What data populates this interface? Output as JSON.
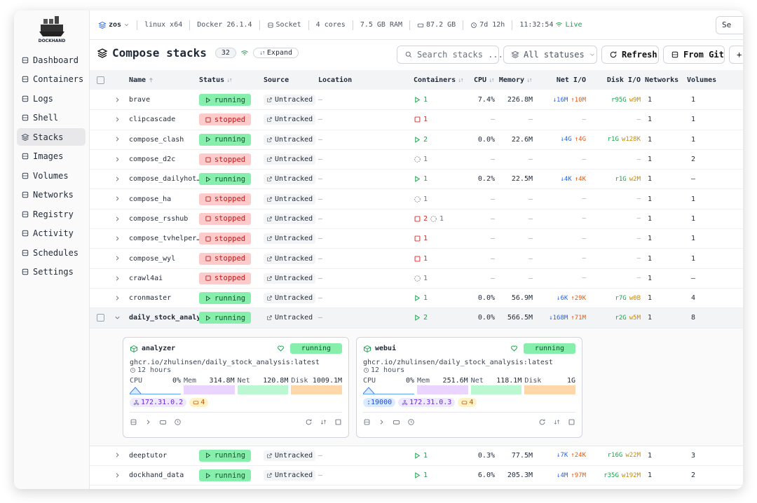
{
  "sidebar": {
    "logo": "DOCKHAND",
    "nav": [
      {
        "label": "Dashboard",
        "active": false
      },
      {
        "label": "Containers",
        "active": false
      },
      {
        "label": "Logs",
        "active": false
      },
      {
        "label": "Shell",
        "active": false
      },
      {
        "label": "Stacks",
        "active": true
      },
      {
        "label": "Images",
        "active": false
      },
      {
        "label": "Volumes",
        "active": false
      },
      {
        "label": "Networks",
        "active": false
      },
      {
        "label": "Registry",
        "active": false
      },
      {
        "label": "Activity",
        "active": false
      },
      {
        "label": "Schedules",
        "active": false
      },
      {
        "label": "Settings",
        "active": false
      }
    ]
  },
  "topbar": {
    "host": "zos",
    "platform": "linux x64",
    "docker": "Docker 26.1.4",
    "connection": "Socket",
    "cpu": "4 cores",
    "ram": "7.5 GB RAM",
    "disk": "87.2 GB",
    "uptime": "7d 12h",
    "time": "11:32:54",
    "status": "Live",
    "search": "Se"
  },
  "header": {
    "title": "Compose stacks",
    "count": "32",
    "expand": "Expand",
    "search_placeholder": "Search stacks ...",
    "filter": "All statuses",
    "refresh": "Refresh",
    "from_git": "From Git",
    "add": "+"
  },
  "table": {
    "columns": [
      "Name",
      "Status",
      "Source",
      "Location",
      "Containers",
      "CPU",
      "Memory",
      "Net I/O",
      "Disk I/O",
      "Networks",
      "Volumes"
    ],
    "rows": [
      {
        "name": "brave",
        "status": "running",
        "source": "Untracked",
        "location": "–",
        "containers": [
          {
            "state": "running",
            "count": "1"
          }
        ],
        "cpu": "7.4%",
        "memory": "226.8M",
        "net": [
          "↓16M",
          "↑10M"
        ],
        "disk": [
          "r95G",
          "w9M"
        ],
        "networks": "1",
        "volumes": "1"
      },
      {
        "name": "clipcascade",
        "status": "stopped",
        "source": "Untracked",
        "location": "–",
        "containers": [
          {
            "state": "stopped",
            "count": "1"
          }
        ],
        "cpu": "–",
        "memory": "–",
        "net": [
          "–"
        ],
        "disk": [
          "–"
        ],
        "networks": "1",
        "volumes": "1"
      },
      {
        "name": "compose_clash",
        "status": "running",
        "source": "Untracked",
        "location": "–",
        "containers": [
          {
            "state": "running",
            "count": "2"
          }
        ],
        "cpu": "0.0%",
        "memory": "22.6M",
        "net": [
          "↓4G",
          "↑4G"
        ],
        "disk": [
          "r1G",
          "w128K"
        ],
        "networks": "1",
        "volumes": "1"
      },
      {
        "name": "compose_d2c",
        "status": "stopped",
        "source": "Untracked",
        "location": "–",
        "containers": [
          {
            "state": "created",
            "count": "1"
          }
        ],
        "cpu": "–",
        "memory": "–",
        "net": [
          "–"
        ],
        "disk": [
          "–"
        ],
        "networks": "1",
        "volumes": "2"
      },
      {
        "name": "compose_dailyhot…",
        "status": "running",
        "source": "Untracked",
        "location": "–",
        "containers": [
          {
            "state": "running",
            "count": "1"
          }
        ],
        "cpu": "0.2%",
        "memory": "22.5M",
        "net": [
          "↓4K",
          "↑4K"
        ],
        "disk": [
          "r1G",
          "w2M"
        ],
        "networks": "1",
        "volumes": "–"
      },
      {
        "name": "compose_ha",
        "status": "stopped",
        "source": "Untracked",
        "location": "–",
        "containers": [
          {
            "state": "created",
            "count": "1"
          }
        ],
        "cpu": "–",
        "memory": "–",
        "net": [
          "–"
        ],
        "disk": [
          "–"
        ],
        "networks": "1",
        "volumes": "1"
      },
      {
        "name": "compose_rsshub",
        "status": "stopped",
        "source": "Untracked",
        "location": "–",
        "containers": [
          {
            "state": "stopped",
            "count": "2"
          },
          {
            "state": "created",
            "count": "1"
          }
        ],
        "cpu": "–",
        "memory": "–",
        "net": [
          "–"
        ],
        "disk": [
          "–"
        ],
        "networks": "1",
        "volumes": "1"
      },
      {
        "name": "compose_tvhelper…",
        "status": "stopped",
        "source": "Untracked",
        "location": "–",
        "containers": [
          {
            "state": "stopped",
            "count": "1"
          }
        ],
        "cpu": "–",
        "memory": "–",
        "net": [
          "–"
        ],
        "disk": [
          "–"
        ],
        "networks": "1",
        "volumes": "1"
      },
      {
        "name": "compose_wyl",
        "status": "stopped",
        "source": "Untracked",
        "location": "–",
        "containers": [
          {
            "state": "stopped",
            "count": "1"
          }
        ],
        "cpu": "–",
        "memory": "–",
        "net": [
          "–"
        ],
        "disk": [
          "–"
        ],
        "networks": "1",
        "volumes": "1"
      },
      {
        "name": "crawl4ai",
        "status": "stopped",
        "source": "Untracked",
        "location": "–",
        "containers": [
          {
            "state": "created",
            "count": "1"
          }
        ],
        "cpu": "–",
        "memory": "–",
        "net": [
          "–"
        ],
        "disk": [
          "–"
        ],
        "networks": "1",
        "volumes": "–"
      },
      {
        "name": "cronmaster",
        "status": "running",
        "source": "Untracked",
        "location": "–",
        "containers": [
          {
            "state": "running",
            "count": "1"
          }
        ],
        "cpu": "0.0%",
        "memory": "56.9M",
        "net": [
          "↓6K",
          "↑29K"
        ],
        "disk": [
          "r7G",
          "w0B"
        ],
        "networks": "1",
        "volumes": "4"
      },
      {
        "name": "daily_stock_analy",
        "status": "running",
        "source": "Untracked",
        "location": "–",
        "containers": [
          {
            "state": "running",
            "count": "2"
          }
        ],
        "cpu": "0.0%",
        "memory": "566.5M",
        "net": [
          "↓168M",
          "↑71M"
        ],
        "disk": [
          "r2G",
          "w5M"
        ],
        "networks": "1",
        "volumes": "8",
        "expanded": true
      },
      {
        "name": "deeptutor",
        "status": "running",
        "source": "Untracked",
        "location": "–",
        "containers": [
          {
            "state": "running",
            "count": "1"
          }
        ],
        "cpu": "0.3%",
        "memory": "77.5M",
        "net": [
          "↓7K",
          "↑24K"
        ],
        "disk": [
          "r16G",
          "w22M"
        ],
        "networks": "1",
        "volumes": "3"
      },
      {
        "name": "dockhand_data",
        "status": "running",
        "source": "Untracked",
        "location": "–",
        "containers": [
          {
            "state": "running",
            "count": "1"
          }
        ],
        "cpu": "6.0%",
        "memory": "205.3M",
        "net": [
          "↓4M",
          "↑97M"
        ],
        "disk": [
          "r35G",
          "w192M"
        ],
        "networks": "1",
        "volumes": "2"
      }
    ]
  },
  "cards": {
    "labels": {
      "cpu": "CPU",
      "mem": "Mem",
      "net": "Net",
      "disk": "Disk"
    },
    "items": [
      {
        "name": "analyzer",
        "status": "running",
        "image": "ghcr.io/zhulinsen/daily_stock_analysis:latest",
        "age": "12 hours",
        "cpu": "0%",
        "mem": "314.8M",
        "net": "120.8M",
        "disk": "1009.1M",
        "ip": "172.31.0.2",
        "badge": "4"
      },
      {
        "name": "webui",
        "status": "running",
        "image": "ghcr.io/zhulinsen/daily_stock_analysis:latest",
        "age": "12 hours",
        "cpu": "0%",
        "mem": "251.6M",
        "net": "118.1M",
        "disk": "1G",
        "port": ":19000",
        "ip": "172.31.0.3",
        "badge": "4"
      }
    ]
  }
}
